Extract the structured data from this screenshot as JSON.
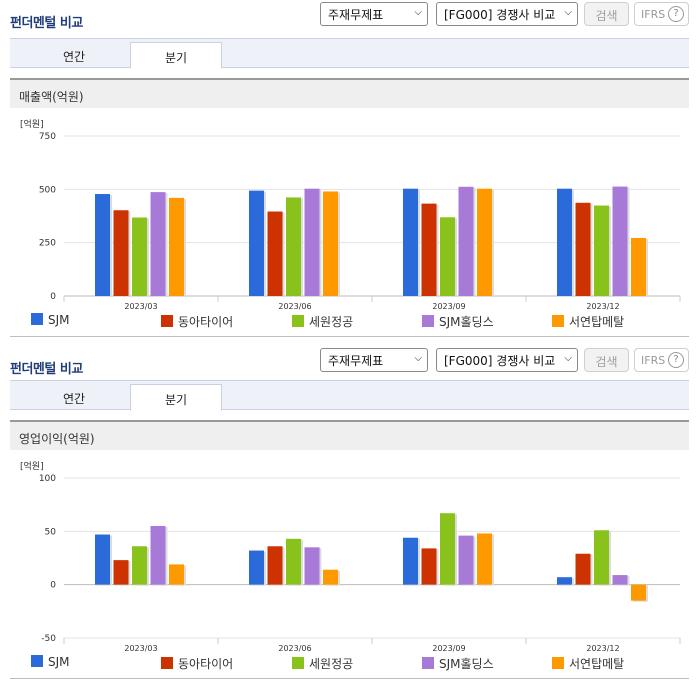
{
  "panels": [
    {
      "title": "펀더멘털 비교",
      "select1": "주재무제표",
      "select2": "[FG000] 경쟁사 비교",
      "search_label": "검색",
      "ifrs_label": "IFRS",
      "tabs": [
        {
          "label": "연간"
        },
        {
          "label": "분기"
        }
      ],
      "active_tab": "분기",
      "subhead": "매출액(억원)",
      "unit": "[억원]"
    },
    {
      "title": "펀더멘털 비교",
      "select1": "주재무제표",
      "select2": "[FG000] 경쟁사 비교",
      "search_label": "검색",
      "ifrs_label": "IFRS",
      "tabs": [
        {
          "label": "연간"
        },
        {
          "label": "분기"
        }
      ],
      "active_tab": "분기",
      "subhead": "영업이익(억원)",
      "unit": "[억원]"
    }
  ],
  "colors": {
    "SJM": "#2a6ad9",
    "동아타이어": "#cc3300",
    "세원정공": "#88c21a",
    "SJM홀딩스": "#a87ad8",
    "서연탑메탈": "#ff9900"
  },
  "chart_data": [
    {
      "type": "bar",
      "title": "매출액(억원)",
      "ylabel": "[억원]",
      "ylim": [
        0,
        750
      ],
      "yticks": [
        0,
        250,
        500,
        750
      ],
      "grid": true,
      "legend": "bottom",
      "categories": [
        "2023/03",
        "2023/06",
        "2023/09",
        "2023/12"
      ],
      "series": [
        {
          "name": "SJM",
          "values": [
            478,
            494,
            503,
            503
          ]
        },
        {
          "name": "동아타이어",
          "values": [
            402,
            396,
            433,
            437
          ]
        },
        {
          "name": "세원정공",
          "values": [
            368,
            462,
            369,
            424
          ]
        },
        {
          "name": "SJM홀딩스",
          "values": [
            487,
            503,
            512,
            513
          ]
        },
        {
          "name": "서연탑메탈",
          "values": [
            460,
            490,
            503,
            272
          ]
        }
      ]
    },
    {
      "type": "bar",
      "title": "영업이익(억원)",
      "ylabel": "[억원]",
      "ylim": [
        -50,
        100
      ],
      "yticks": [
        -50,
        0,
        50,
        100
      ],
      "grid": true,
      "legend": "bottom",
      "categories": [
        "2023/03",
        "2023/06",
        "2023/09",
        "2023/12"
      ],
      "series": [
        {
          "name": "SJM",
          "values": [
            47,
            32,
            44,
            7
          ]
        },
        {
          "name": "동아타이어",
          "values": [
            23,
            36,
            34,
            29
          ]
        },
        {
          "name": "세원정공",
          "values": [
            36,
            43,
            67,
            51
          ]
        },
        {
          "name": "SJM홀딩스",
          "values": [
            55,
            35,
            46,
            9
          ]
        },
        {
          "name": "서연탑메탈",
          "values": [
            19,
            14,
            48,
            -15
          ]
        }
      ]
    }
  ]
}
